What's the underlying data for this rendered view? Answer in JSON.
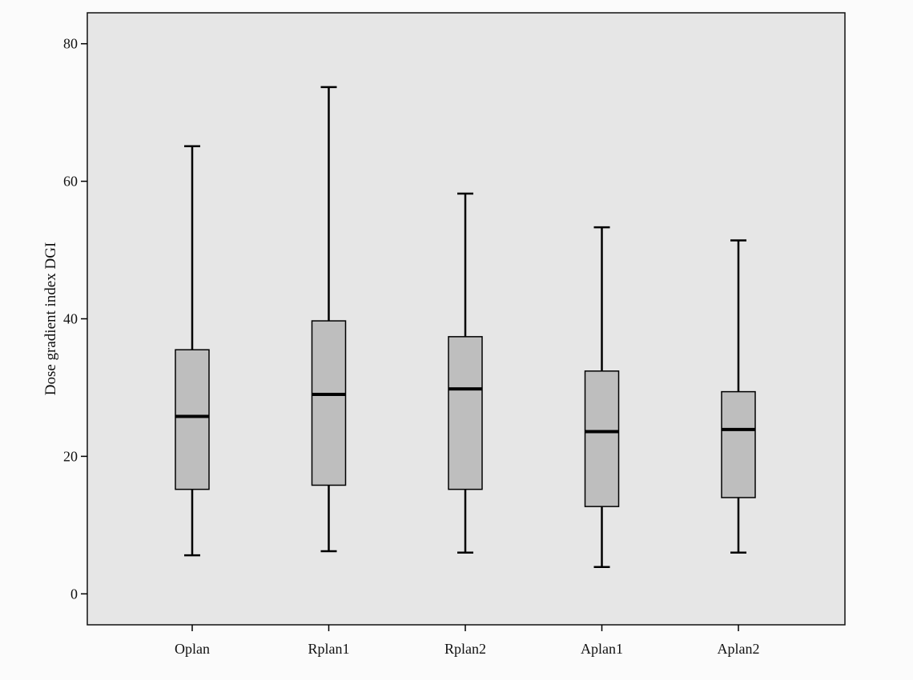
{
  "chart_data": {
    "type": "boxplot",
    "title": "",
    "xlabel": "",
    "ylabel": "Dose gradient index DGI",
    "ylim": [
      -4.5,
      84.5
    ],
    "yticks": [
      0,
      20,
      40,
      60,
      80
    ],
    "grid": false,
    "categories": [
      "Oplan",
      "Rplan1",
      "Rplan2",
      "Aplan1",
      "Aplan2"
    ],
    "boxes": [
      {
        "category": "Oplan",
        "min": 5.6,
        "q1": 15.2,
        "median": 25.8,
        "q3": 35.5,
        "max": 65.1
      },
      {
        "category": "Rplan1",
        "min": 6.2,
        "q1": 15.8,
        "median": 29.0,
        "q3": 39.7,
        "max": 73.7
      },
      {
        "category": "Rplan2",
        "min": 6.0,
        "q1": 15.2,
        "median": 29.8,
        "q3": 37.4,
        "max": 58.2
      },
      {
        "category": "Aplan1",
        "min": 3.9,
        "q1": 12.7,
        "median": 23.6,
        "q3": 32.4,
        "max": 53.3
      },
      {
        "category": "Aplan2",
        "min": 6.0,
        "q1": 14.0,
        "median": 23.9,
        "q3": 29.4,
        "max": 51.4
      }
    ],
    "colors": {
      "plot_background": "#e6e6e6",
      "box_fill": "#bebebe",
      "line": "#000000"
    }
  }
}
